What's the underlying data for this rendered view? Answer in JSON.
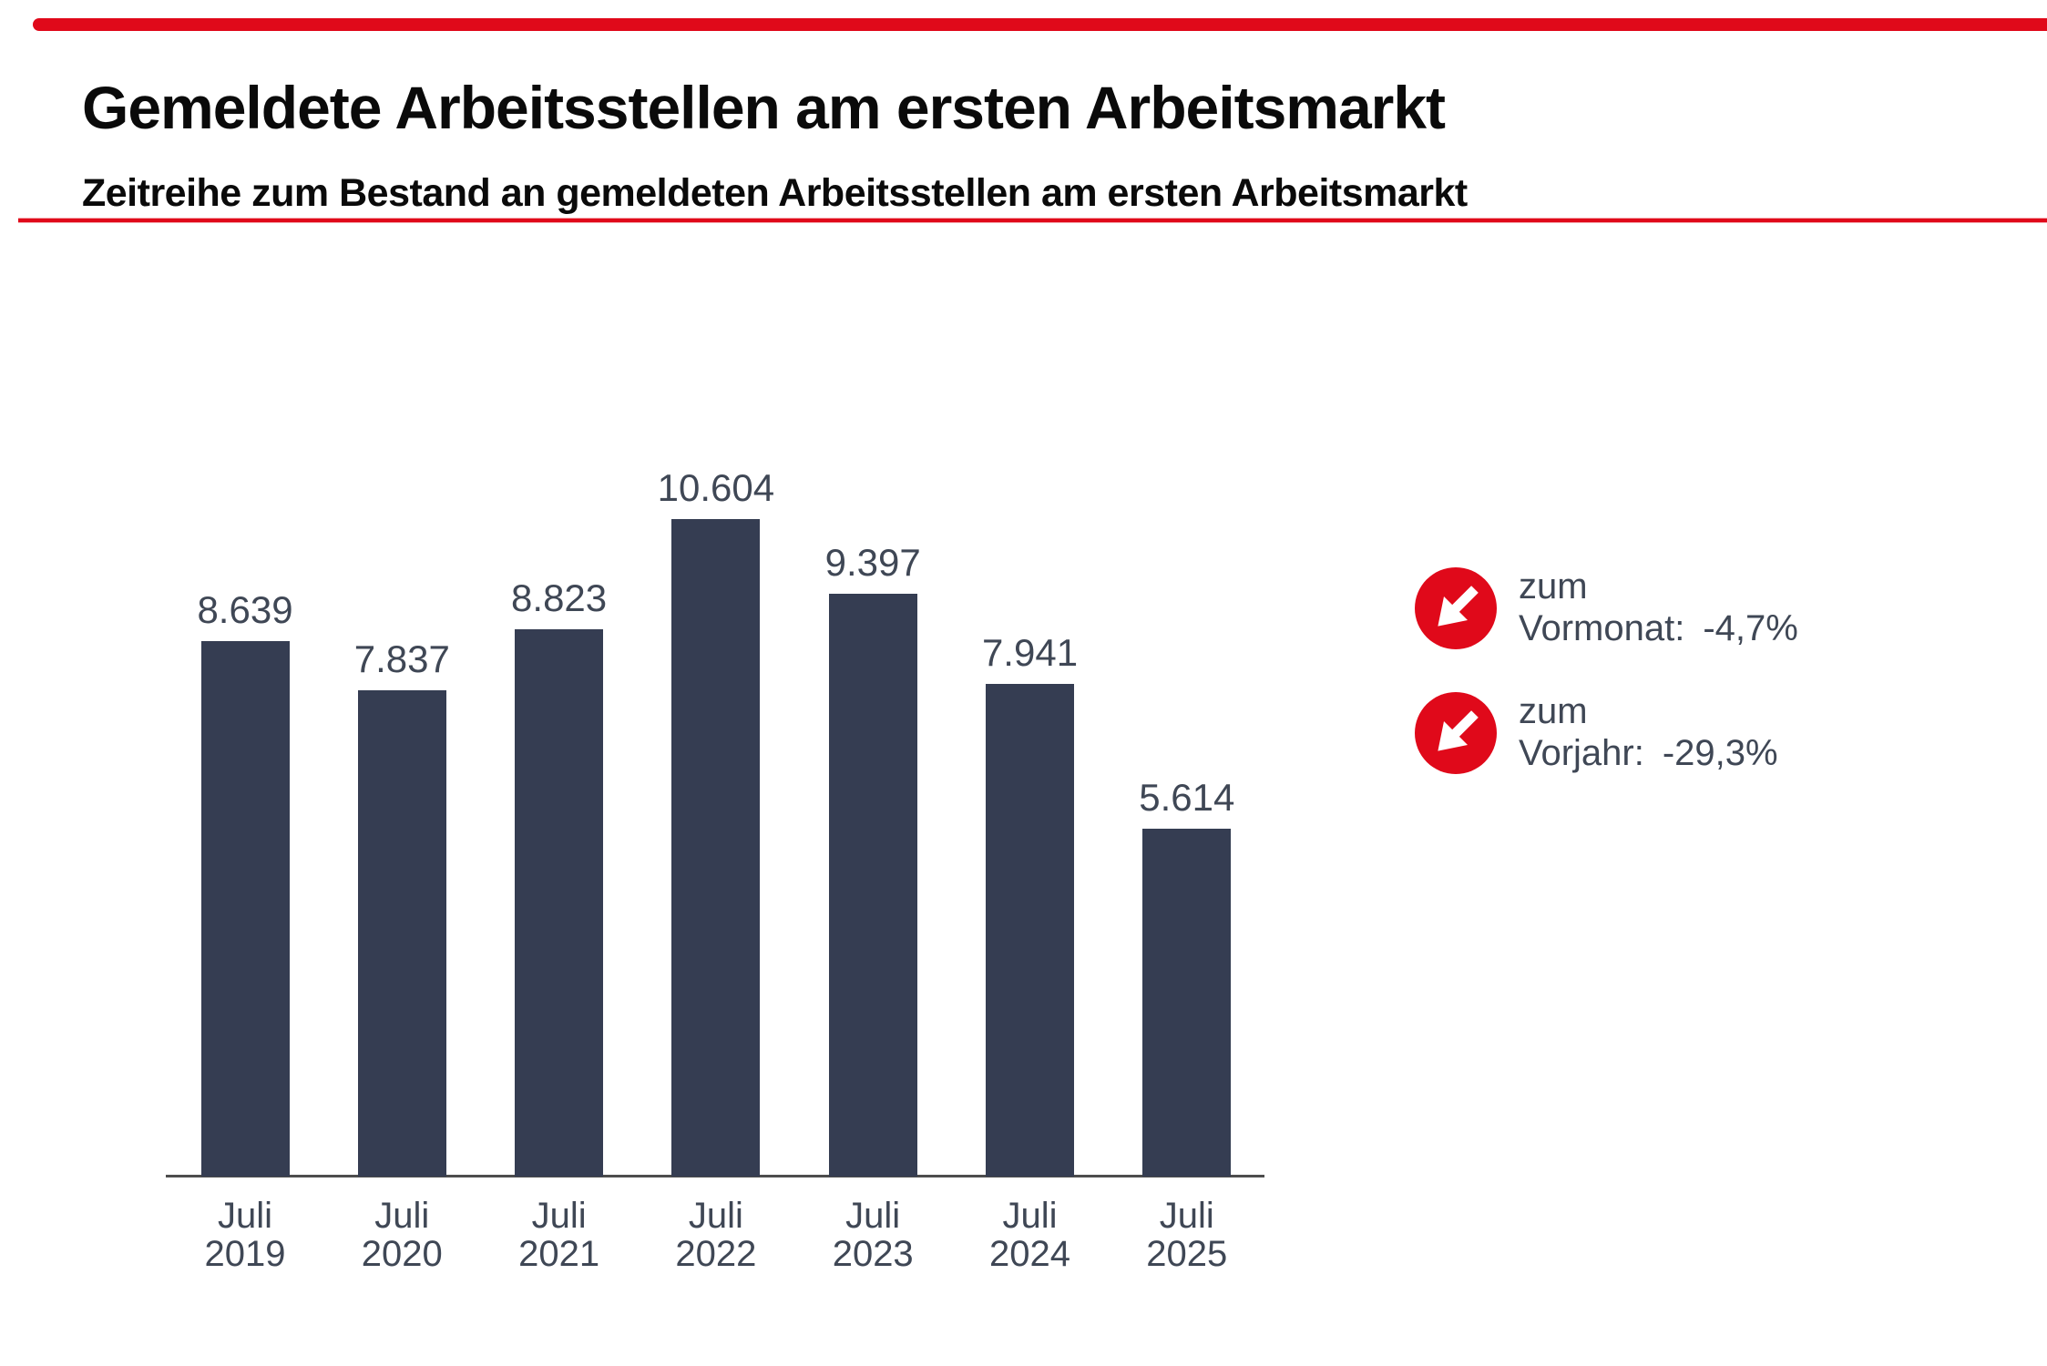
{
  "header": {
    "title": "Gemeldete Arbeitsstellen am ersten Arbeitsmarkt",
    "subtitle": "Zeitreihe zum Bestand an gemeldeten Arbeitsstellen am ersten Arbeitsmarkt"
  },
  "chart_data": {
    "type": "bar",
    "title": "",
    "xlabel": "",
    "ylabel": "",
    "categories": [
      "Juli 2019",
      "Juli 2020",
      "Juli 2021",
      "Juli 2022",
      "Juli 2023",
      "Juli 2024",
      "Juli 2025"
    ],
    "values": [
      8639,
      7837,
      8823,
      10604,
      9397,
      7941,
      5614
    ],
    "value_labels": [
      "8.639",
      "7.837",
      "8.823",
      "10.604",
      "9.397",
      "7.941",
      "5.614"
    ],
    "ylim": [
      0,
      10604
    ],
    "grid": false,
    "legend": "none",
    "bar_color": "#353d52"
  },
  "indicators": [
    {
      "icon": "arrow-down-right-icon",
      "prefix": "zum",
      "label": "Vormonat:",
      "value": "-4,7%"
    },
    {
      "icon": "arrow-down-right-icon",
      "prefix": "zum",
      "label": "Vorjahr:",
      "value": "-29,3%"
    }
  ],
  "colors": {
    "accent_red": "#e0091a",
    "bar_navy": "#353d52",
    "label_slate": "#3f4755",
    "axis_gray": "#4d4d4d",
    "heading_black": "#0a0a0a"
  }
}
